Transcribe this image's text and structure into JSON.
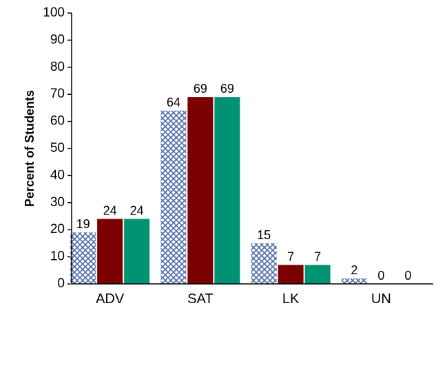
{
  "chart_data": {
    "type": "bar",
    "title": "",
    "xlabel": "",
    "ylabel": "Percent of Students",
    "ylim": [
      0,
      100
    ],
    "yticks": [
      0,
      10,
      20,
      30,
      40,
      50,
      60,
      70,
      80,
      90,
      100
    ],
    "categories": [
      "ADV",
      "SAT",
      "LK",
      "UN"
    ],
    "grid": false,
    "legend": "none",
    "series": [
      {
        "values": [
          19,
          64,
          15,
          2
        ],
        "color": "#4a6aa8",
        "pattern": "crosshatch"
      },
      {
        "values": [
          24,
          69,
          7,
          0
        ],
        "color": "#7b0000"
      },
      {
        "values": [
          24,
          69,
          7,
          0
        ],
        "color": "#009373"
      }
    ]
  }
}
